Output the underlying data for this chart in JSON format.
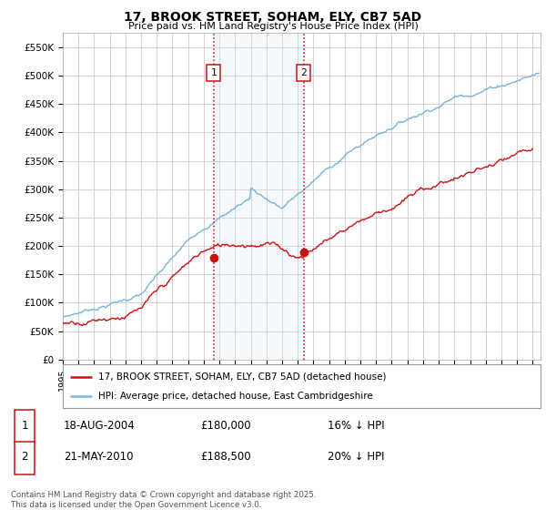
{
  "title": "17, BROOK STREET, SOHAM, ELY, CB7 5AD",
  "subtitle": "Price paid vs. HM Land Registry's House Price Index (HPI)",
  "ylabel_ticks": [
    "£0",
    "£50K",
    "£100K",
    "£150K",
    "£200K",
    "£250K",
    "£300K",
    "£350K",
    "£400K",
    "£450K",
    "£500K",
    "£550K"
  ],
  "ytick_values": [
    0,
    50000,
    100000,
    150000,
    200000,
    250000,
    300000,
    350000,
    400000,
    450000,
    500000,
    550000
  ],
  "ylim": [
    0,
    575000
  ],
  "xlim_start": 1995.0,
  "xlim_end": 2025.5,
  "hpi_color": "#7ab4d8",
  "price_color": "#cc1111",
  "vline_color": "#cc1111",
  "shade_color": "#d8e8f5",
  "marker1_year": 2004.63,
  "marker2_year": 2010.37,
  "marker1_price": 180000,
  "marker2_price": 188500,
  "ann_y": 505000,
  "legend_label1": "17, BROOK STREET, SOHAM, ELY, CB7 5AD (detached house)",
  "legend_label2": "HPI: Average price, detached house, East Cambridgeshire",
  "table_row1": [
    "1",
    "18-AUG-2004",
    "£180,000",
    "16% ↓ HPI"
  ],
  "table_row2": [
    "2",
    "21-MAY-2010",
    "£188,500",
    "20% ↓ HPI"
  ],
  "footer": "Contains HM Land Registry data © Crown copyright and database right 2025.\nThis data is licensed under the Open Government Licence v3.0.",
  "background_color": "#ffffff",
  "grid_color": "#cccccc"
}
